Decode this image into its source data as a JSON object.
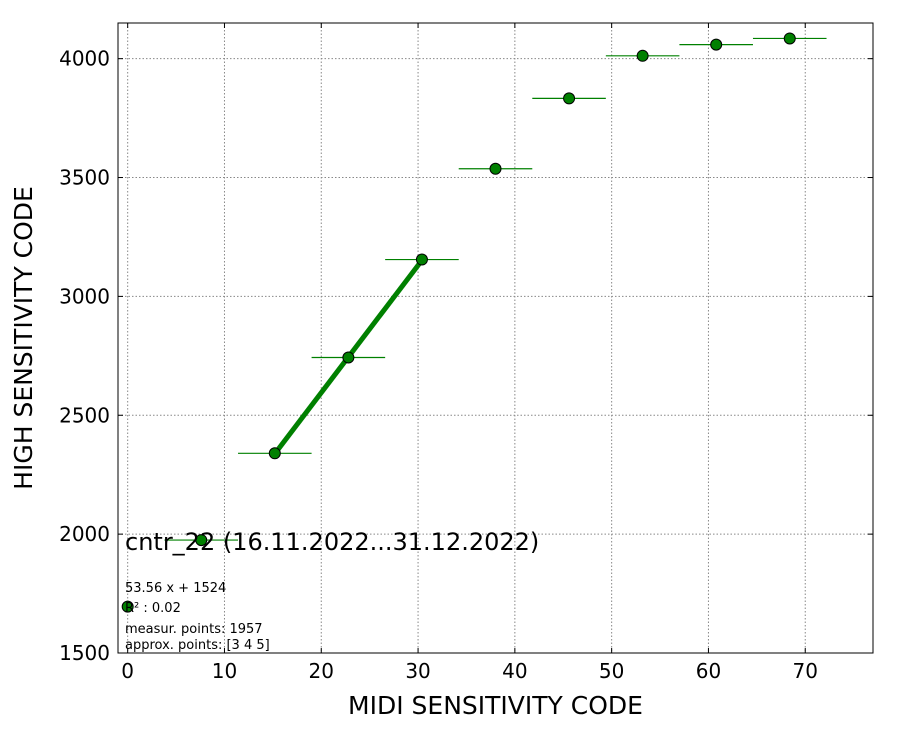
{
  "chart_data": {
    "type": "scatter",
    "xlabel": "MIDI SENSITIVITY CODE",
    "ylabel": "HIGH SENSITIVITY CODE",
    "xlim": [
      -1,
      77
    ],
    "ylim": [
      1500,
      4150
    ],
    "xticks": [
      0,
      10,
      20,
      30,
      40,
      50,
      60,
      70
    ],
    "yticks": [
      1500,
      2000,
      2500,
      3000,
      3500,
      4000
    ],
    "grid": true,
    "grid_style": "dotted",
    "marker_color": "#008000",
    "line_color": "#008000",
    "points": [
      {
        "x": 0.0,
        "y": 1695,
        "xerr": 0
      },
      {
        "x": 7.6,
        "y": 1975,
        "xerr": 3.8
      },
      {
        "x": 15.2,
        "y": 2340,
        "xerr": 3.8
      },
      {
        "x": 22.8,
        "y": 2743,
        "xerr": 3.8
      },
      {
        "x": 30.4,
        "y": 3155,
        "xerr": 3.8
      },
      {
        "x": 38.0,
        "y": 3537,
        "xerr": 3.8
      },
      {
        "x": 45.6,
        "y": 3833,
        "xerr": 3.8
      },
      {
        "x": 53.2,
        "y": 4012,
        "xerr": 3.8
      },
      {
        "x": 60.8,
        "y": 4059,
        "xerr": 3.8
      },
      {
        "x": 68.4,
        "y": 4085,
        "xerr": 3.8
      }
    ],
    "fit_line": {
      "x": [
        15.2,
        30.4
      ],
      "y": [
        2338,
        3152
      ]
    },
    "annotation": {
      "title": "cntr_22 (16.11.2022...31.12.2022)",
      "lines": [
        "53.56 x + 1524",
        "R² : 0.02",
        "measur. points: 1957",
        "approx. points: [3 4 5]"
      ]
    }
  }
}
